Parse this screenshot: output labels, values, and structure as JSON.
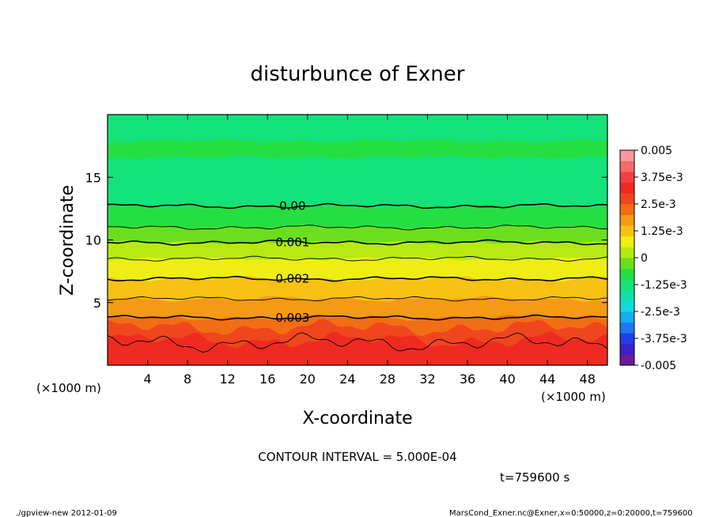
{
  "chart_data": {
    "type": "heatmap",
    "title": "disturbunce of Exner",
    "xlabel": "X-coordinate",
    "ylabel": "Z-coordinate",
    "x_unit_label_left": "(×1000 m)",
    "x_unit_label_right": "(×1000 m)",
    "xlim": [
      0,
      50
    ],
    "ylim": [
      0,
      20
    ],
    "x_ticks": [
      4,
      8,
      12,
      16,
      20,
      24,
      28,
      32,
      36,
      40,
      44,
      48
    ],
    "y_ticks": [
      5,
      10,
      15
    ],
    "colorbar": {
      "range": [
        -0.005,
        0.005
      ],
      "step": 0.0005,
      "tick_labels": [
        "0.005",
        "3.75e-3",
        "2.5e-3",
        "1.25e-3",
        "0",
        "-1.25e-3",
        "-2.5e-3",
        "-3.75e-3",
        "-0.005"
      ]
    },
    "contour_interval": 0.0005,
    "contours": [
      {
        "value": 0.0,
        "label": "0.00",
        "z_mean": 12.7
      },
      {
        "value": 0.0005,
        "label": "",
        "z_mean": 11.0
      },
      {
        "value": 0.001,
        "label": "0.001",
        "z_mean": 9.8
      },
      {
        "value": 0.0015,
        "label": "",
        "z_mean": 8.5
      },
      {
        "value": 0.002,
        "label": "0.002",
        "z_mean": 6.9
      },
      {
        "value": 0.0025,
        "label": "",
        "z_mean": 5.3
      },
      {
        "value": 0.003,
        "label": "0.003",
        "z_mean": 3.8
      },
      {
        "value": 0.0035,
        "label": "",
        "z_mean": 1.8
      }
    ]
  },
  "annotations": {
    "contour_interval_text": "CONTOUR INTERVAL = 5.000E-04",
    "time_text": "t=759600 s",
    "footer_left": "./gpview-new  2012-01-09",
    "footer_right": "MarsCond_Exner.nc@Exner,x=0:50000,z=0:20000,t=759600"
  },
  "colors": {
    "palette": [
      "#6a1a9a",
      "#3d1ec8",
      "#1f3ee6",
      "#1d78f2",
      "#13aef2",
      "#10dcdc",
      "#10e0a8",
      "#14e27a",
      "#25df42",
      "#6bdf1e",
      "#b6ea12",
      "#eeee14",
      "#f7c214",
      "#f59a14",
      "#f26e14",
      "#f0461e",
      "#ef2a20",
      "#f04040",
      "#f56a6a",
      "#fb9a9a"
    ]
  }
}
